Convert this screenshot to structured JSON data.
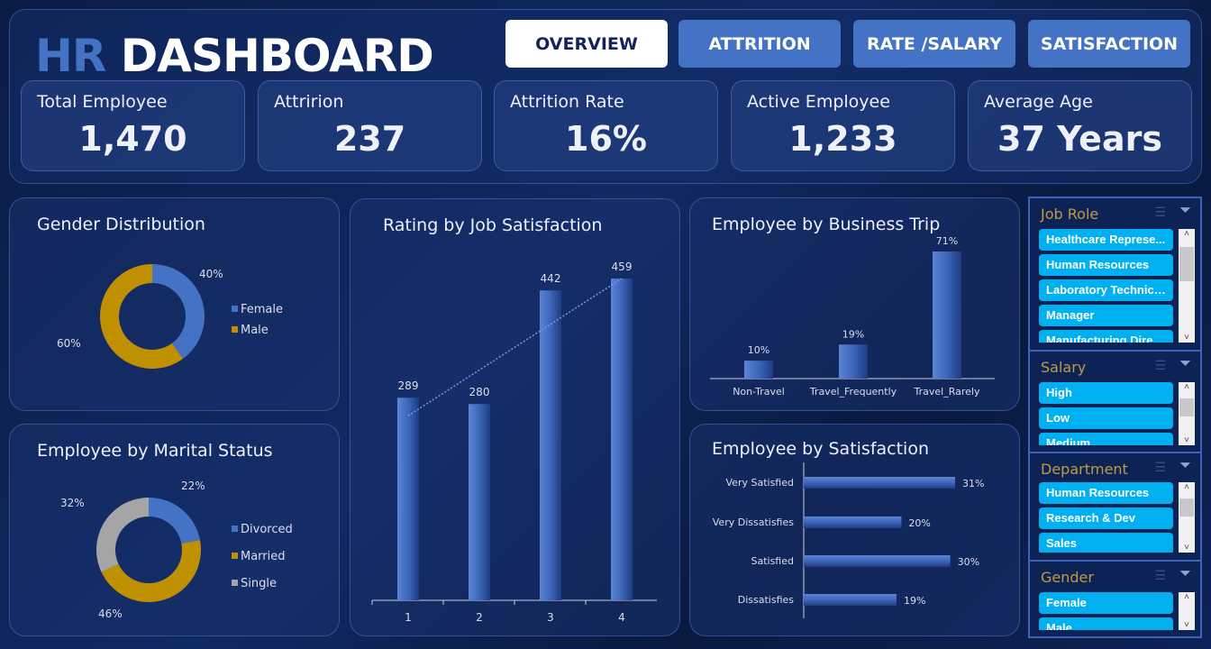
{
  "header": {
    "title_accent": "HR",
    "title_main": "DASHBOARD",
    "nav": [
      {
        "label": "OVERVIEW",
        "active": true
      },
      {
        "label": "ATTRITION"
      },
      {
        "label": "RATE /SALARY"
      },
      {
        "label": "SATISFACTION"
      }
    ]
  },
  "kpis": [
    {
      "label": "Total Employee",
      "value": "1,470"
    },
    {
      "label": "Attririon",
      "value": "237"
    },
    {
      "label": "Attrition Rate",
      "value": "16%"
    },
    {
      "label": "Active Employee",
      "value": "1,233"
    },
    {
      "label": "Average Age",
      "value": "37 Years"
    }
  ],
  "colors": {
    "blue": "#4472c4",
    "gold": "#bf9000",
    "gray": "#a5a5a5",
    "slicer": "#00b0f0"
  },
  "chart_data": [
    {
      "id": "gender",
      "type": "pie",
      "title": "Gender Distribution",
      "categories": [
        "Female",
        "Male"
      ],
      "values": [
        40,
        60
      ],
      "labels": [
        "40%",
        "60%"
      ],
      "colors": [
        "#4472c4",
        "#bf9000"
      ],
      "legend": "right"
    },
    {
      "id": "marital",
      "type": "pie",
      "title": "Employee by Marital Status",
      "categories": [
        "Divorced",
        "Married",
        "Single"
      ],
      "values": [
        22,
        46,
        32
      ],
      "labels": [
        "22%",
        "46%",
        "32%"
      ],
      "colors": [
        "#4472c4",
        "#bf9000",
        "#a5a5a5"
      ],
      "legend": "right"
    },
    {
      "id": "jobsat",
      "type": "bar",
      "title": "Rating by Job Satisfaction",
      "categories": [
        "1",
        "2",
        "3",
        "4"
      ],
      "values": [
        289,
        280,
        442,
        459
      ],
      "trendline": true
    },
    {
      "id": "trip",
      "type": "bar",
      "title": "Employee by Business Trip",
      "categories": [
        "Non-Travel",
        "Travel_Frequently",
        "Travel_Rarely"
      ],
      "values": [
        10,
        19,
        71
      ],
      "labels": [
        "10%",
        "19%",
        "71%"
      ]
    },
    {
      "id": "satis",
      "type": "bar",
      "orientation": "horizontal",
      "title": "Employee by Satisfaction",
      "categories": [
        "Very Satisfied",
        "Very Dissatisfies",
        "Satisfied",
        "Dissatisfies"
      ],
      "values": [
        31,
        20,
        30,
        19
      ],
      "labels": [
        "31%",
        "20%",
        "30%",
        "19%"
      ]
    }
  ],
  "slicers": [
    {
      "title": "Job Role",
      "items": [
        "Healthcare Represe...",
        "Human Resources",
        "Laboratory Technici...",
        "Manager",
        "Manufacturing Dire..."
      ]
    },
    {
      "title": "Salary",
      "items": [
        "High",
        "Low",
        "Medium"
      ]
    },
    {
      "title": "Department",
      "items": [
        "Human Resources",
        "Research & Dev",
        "Sales"
      ]
    },
    {
      "title": "Gender",
      "items": [
        "Female",
        "Male"
      ]
    }
  ]
}
